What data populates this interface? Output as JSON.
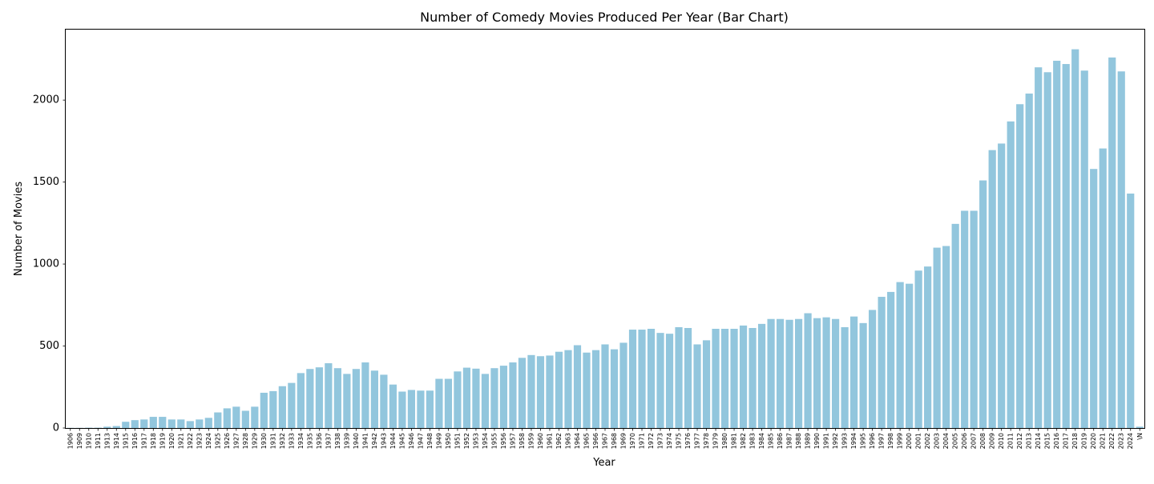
{
  "chart_data": {
    "type": "bar",
    "title": "Number of Comedy Movies Produced Per Year (Bar Chart)",
    "xlabel": "Year",
    "ylabel": "Number of Movies",
    "ylim": [
      0,
      2430
    ],
    "yticks": [
      0,
      500,
      1000,
      1500,
      2000
    ],
    "grid": false,
    "legend": "none",
    "bar_color": "#92c6dd",
    "categories": [
      "1906",
      "1909",
      "1910",
      "1911",
      "1913",
      "1914",
      "1915",
      "1916",
      "1917",
      "1918",
      "1919",
      "1920",
      "1921",
      "1922",
      "1923",
      "1924",
      "1925",
      "1926",
      "1927",
      "1928",
      "1929",
      "1930",
      "1931",
      "1932",
      "1933",
      "1934",
      "1935",
      "1936",
      "1937",
      "1938",
      "1939",
      "1940",
      "1941",
      "1942",
      "1943",
      "1944",
      "1945",
      "1946",
      "1947",
      "1948",
      "1949",
      "1950",
      "1951",
      "1952",
      "1953",
      "1954",
      "1955",
      "1956",
      "1957",
      "1958",
      "1959",
      "1960",
      "1961",
      "1962",
      "1963",
      "1964",
      "1965",
      "1966",
      "1967",
      "1968",
      "1969",
      "1970",
      "1971",
      "1972",
      "1973",
      "1974",
      "1975",
      "1976",
      "1977",
      "1978",
      "1979",
      "1980",
      "1981",
      "1982",
      "1983",
      "1984",
      "1985",
      "1986",
      "1987",
      "1988",
      "1989",
      "1990",
      "1991",
      "1992",
      "1993",
      "1994",
      "1995",
      "1996",
      "1997",
      "1998",
      "1999",
      "2000",
      "2001",
      "2002",
      "2003",
      "2004",
      "2005",
      "2006",
      "2007",
      "2008",
      "2009",
      "2010",
      "2011",
      "2012",
      "2013",
      "2014",
      "2015",
      "2016",
      "2017",
      "2018",
      "2019",
      "2020",
      "2021",
      "2022",
      "2023",
      "2024",
      "\\N"
    ],
    "values": [
      1,
      1,
      2,
      2,
      8,
      12,
      38,
      48,
      52,
      68,
      68,
      52,
      52,
      42,
      52,
      62,
      95,
      120,
      130,
      105,
      130,
      215,
      225,
      255,
      275,
      335,
      360,
      370,
      395,
      365,
      330,
      360,
      400,
      350,
      325,
      265,
      222,
      232,
      228,
      228,
      300,
      300,
      345,
      368,
      362,
      330,
      365,
      380,
      400,
      428,
      445,
      438,
      442,
      465,
      475,
      505,
      460,
      475,
      510,
      480,
      520,
      600,
      600,
      605,
      580,
      575,
      615,
      610,
      510,
      535,
      605,
      605,
      605,
      625,
      610,
      635,
      665,
      665,
      660,
      665,
      700,
      670,
      675,
      665,
      615,
      680,
      640,
      720,
      800,
      830,
      890,
      880,
      960,
      985,
      1100,
      1110,
      1245,
      1325,
      1325,
      1510,
      1695,
      1735,
      1870,
      1975,
      2040,
      2200,
      2170,
      2240,
      2220,
      2310,
      2180,
      1580,
      1705,
      2260,
      2175,
      1430,
      8
    ]
  }
}
